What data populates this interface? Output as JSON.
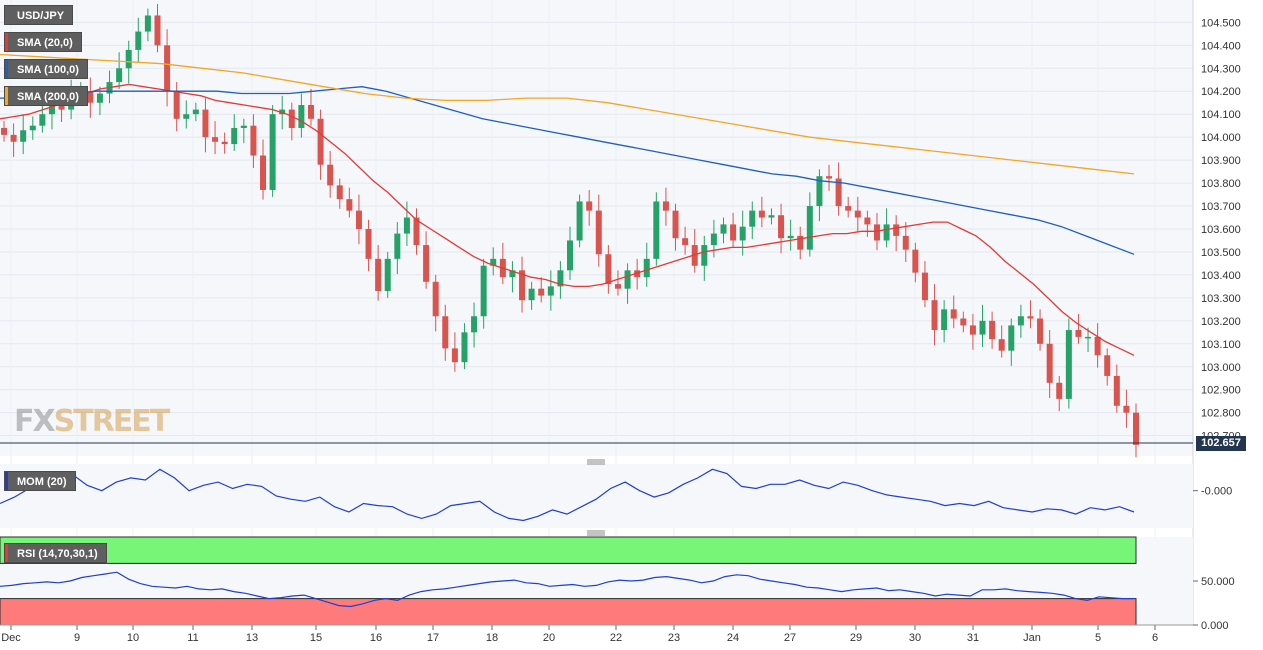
{
  "symbol": "USD/JPY",
  "legend": [
    {
      "label": "SMA (20,0)",
      "color": "#e53935"
    },
    {
      "label": "SMA (100,0)",
      "color": "#1f5fbf"
    },
    {
      "label": "SMA (200,0)",
      "color": "#f5a623"
    }
  ],
  "indicators": {
    "mom_label": "MOM (20)",
    "mom_tick": "-0.000",
    "rsi_label": "RSI (14,70,30,1)",
    "rsi_ticks": [
      "50.000",
      "0.000"
    ]
  },
  "logo": {
    "fx": "FX",
    "street": "STREET"
  },
  "current_price": "102.657",
  "colors": {
    "up": "#26a269",
    "down": "#d9534f",
    "sma20": "#e53935",
    "sma100": "#1f5fbf",
    "sma200": "#f5a623",
    "rsi_high": "#76f576",
    "rsi_low": "#ff7b7b"
  },
  "chart_data": {
    "type": "candlestick",
    "title": "USD/JPY",
    "y_ticks": [
      "104.500",
      "104.400",
      "104.300",
      "104.200",
      "104.100",
      "104.000",
      "103.900",
      "103.800",
      "103.700",
      "103.600",
      "103.500",
      "103.400",
      "103.300",
      "103.200",
      "103.100",
      "103.000",
      "102.900",
      "102.800",
      "102.700"
    ],
    "ylim": [
      102.62,
      104.58
    ],
    "x_ticks": [
      "Dec",
      "9",
      "10",
      "11",
      "13",
      "15",
      "16",
      "17",
      "18",
      "20",
      "22",
      "23",
      "24",
      "27",
      "29",
      "30",
      "31",
      "Jan",
      "5",
      "6"
    ],
    "grid": true,
    "closes": [
      104.01,
      103.98,
      104.03,
      104.05,
      104.1,
      104.15,
      104.12,
      104.18,
      104.2,
      104.15,
      104.19,
      104.24,
      104.3,
      104.38,
      104.46,
      104.53,
      104.4,
      104.2,
      104.08,
      104.1,
      104.12,
      104.0,
      103.98,
      103.97,
      104.04,
      104.05,
      103.92,
      103.77,
      104.1,
      104.12,
      104.04,
      104.14,
      104.08,
      103.88,
      103.79,
      103.73,
      103.68,
      103.6,
      103.47,
      103.33,
      103.47,
      103.58,
      103.65,
      103.53,
      103.37,
      103.22,
      103.08,
      103.02,
      103.15,
      103.22,
      103.44,
      103.47,
      103.39,
      103.42,
      103.29,
      103.34,
      103.31,
      103.35,
      103.42,
      103.55,
      103.72,
      103.68,
      103.49,
      103.36,
      103.34,
      103.42,
      103.39,
      103.47,
      103.72,
      103.68,
      103.56,
      103.53,
      103.44,
      103.53,
      103.58,
      103.62,
      103.55,
      103.61,
      103.68,
      103.65,
      103.66,
      103.56,
      103.57,
      103.51,
      103.7,
      103.83,
      103.82,
      103.7,
      103.68,
      103.65,
      103.62,
      103.55,
      103.62,
      103.57,
      103.51,
      103.41,
      103.29,
      103.16,
      103.25,
      103.21,
      103.18,
      103.14,
      103.2,
      103.12,
      103.07,
      103.18,
      103.22,
      103.21,
      103.1,
      102.93,
      102.86,
      103.16,
      103.13,
      103.13,
      103.05,
      102.96,
      102.83,
      102.8,
      102.66
    ],
    "sma20": [
      104.08,
      104.09,
      104.1,
      104.12,
      104.14,
      104.17,
      104.19,
      104.21,
      104.22,
      104.23,
      104.22,
      104.21,
      104.2,
      104.19,
      104.18,
      104.16,
      104.15,
      104.14,
      104.13,
      104.12,
      104.1,
      104.07,
      104.03,
      103.98,
      103.93,
      103.87,
      103.81,
      103.76,
      103.7,
      103.64,
      103.6,
      103.56,
      103.52,
      103.48,
      103.45,
      103.43,
      103.41,
      103.39,
      103.38,
      103.36,
      103.35,
      103.35,
      103.36,
      103.38,
      103.4,
      103.42,
      103.44,
      103.46,
      103.48,
      103.5,
      103.51,
      103.52,
      103.52,
      103.53,
      103.54,
      103.55,
      103.56,
      103.57,
      103.58,
      103.58,
      103.59,
      103.59,
      103.6,
      103.61,
      103.62,
      103.63,
      103.63,
      103.6,
      103.57,
      103.52,
      103.46,
      103.41,
      103.36,
      103.3,
      103.24,
      103.19,
      103.15,
      103.11,
      103.08,
      103.05
    ],
    "sma100": [
      104.17,
      104.17,
      104.18,
      104.19,
      104.2,
      104.2,
      104.2,
      104.2,
      104.2,
      104.2,
      104.19,
      104.19,
      104.19,
      104.2,
      104.21,
      104.22,
      104.2,
      104.17,
      104.14,
      104.11,
      104.08,
      104.06,
      104.04,
      104.02,
      104.0,
      103.98,
      103.96,
      103.94,
      103.92,
      103.9,
      103.88,
      103.86,
      103.84,
      103.83,
      103.81,
      103.8,
      103.78,
      103.76,
      103.74,
      103.72,
      103.7,
      103.68,
      103.66,
      103.64,
      103.61,
      103.57,
      103.53,
      103.49
    ],
    "sma200": [
      104.36,
      104.35,
      104.34,
      104.33,
      104.32,
      104.3,
      104.28,
      104.25,
      104.22,
      104.19,
      104.17,
      104.16,
      104.16,
      104.17,
      104.17,
      104.15,
      104.12,
      104.09,
      104.06,
      104.03,
      104.0,
      103.98,
      103.96,
      103.94,
      103.92,
      103.9,
      103.88,
      103.86,
      103.84
    ],
    "mom": [
      -0.12,
      -0.06,
      0.02,
      0.05,
      0.12,
      0.15,
      0.05,
      0.0,
      0.08,
      0.12,
      0.1,
      0.2,
      0.12,
      0.0,
      0.05,
      0.08,
      0.02,
      0.06,
      0.04,
      -0.05,
      -0.08,
      -0.1,
      -0.06,
      -0.15,
      -0.2,
      -0.12,
      -0.14,
      -0.15,
      -0.22,
      -0.26,
      -0.22,
      -0.14,
      -0.12,
      -0.1,
      -0.2,
      -0.26,
      -0.28,
      -0.24,
      -0.18,
      -0.22,
      -0.15,
      -0.08,
      0.02,
      0.08,
      0.0,
      -0.06,
      -0.02,
      0.06,
      0.12,
      0.2,
      0.16,
      0.04,
      0.02,
      0.06,
      0.06,
      0.1,
      0.05,
      0.02,
      0.08,
      0.05,
      0.0,
      -0.04,
      -0.06,
      -0.08,
      -0.1,
      -0.14,
      -0.12,
      -0.14,
      -0.1,
      -0.16,
      -0.18,
      -0.2,
      -0.17,
      -0.18,
      -0.22,
      -0.16,
      -0.18,
      -0.15,
      -0.2
    ],
    "rsi": [
      44,
      45,
      47,
      48,
      49,
      48,
      50,
      54,
      56,
      58,
      60,
      52,
      47,
      44,
      43,
      42,
      44,
      41,
      40,
      41,
      38,
      36,
      33,
      30,
      31,
      33,
      34,
      30,
      26,
      22,
      21,
      24,
      28,
      30,
      28,
      34,
      38,
      40,
      41,
      43,
      45,
      47,
      49,
      50,
      51,
      48,
      47,
      44,
      45,
      46,
      44,
      45,
      49,
      51,
      50,
      51,
      54,
      55,
      53,
      51,
      48,
      50,
      55,
      57,
      56,
      52,
      50,
      48,
      46,
      43,
      42,
      40,
      38,
      40,
      41,
      42,
      39,
      40,
      38,
      36,
      33,
      35,
      34,
      33,
      40,
      40,
      41,
      39,
      38,
      37,
      36,
      34,
      30,
      28,
      32,
      31,
      30,
      30
    ]
  }
}
